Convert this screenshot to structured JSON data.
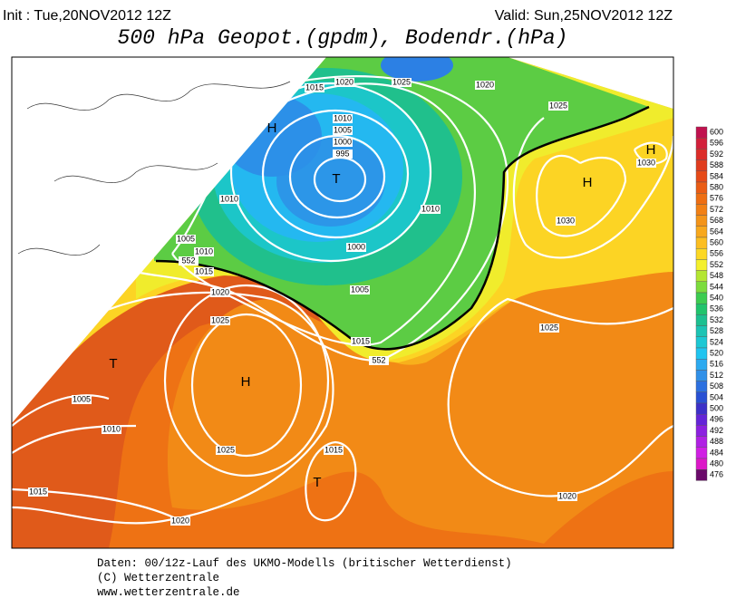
{
  "header": {
    "init": "Init : Tue,20NOV2012 12Z",
    "valid": "Valid: Sun,25NOV2012 12Z",
    "title": "500 hPa Geopot.(gpdm), Bodendr.(hPa)"
  },
  "map": {
    "labels": [
      "1015",
      "1020",
      "1025",
      "1020",
      "1025",
      "1010",
      "1005",
      "1000",
      "995",
      "T",
      "H",
      "H",
      "1030",
      "H",
      "1030",
      "1010",
      "1010",
      "1005",
      "1010",
      "552",
      "1000",
      "1015",
      "1020",
      "1005",
      "1025",
      "1015",
      "552",
      "1025",
      "T",
      "H",
      "1005",
      "1010",
      "1025",
      "1015",
      "T",
      "1015",
      "1020",
      "1020"
    ]
  },
  "colorbar": {
    "levels": [
      600,
      596,
      592,
      588,
      584,
      580,
      576,
      572,
      568,
      564,
      560,
      556,
      552,
      548,
      544,
      540,
      536,
      532,
      528,
      524,
      520,
      516,
      512,
      508,
      504,
      500,
      496,
      492,
      488,
      484,
      480,
      476
    ],
    "colors": [
      "#c0124e",
      "#d2203a",
      "#dc2c28",
      "#e03c1e",
      "#e64a18",
      "#ea5c14",
      "#ee6e12",
      "#f28014",
      "#f49418",
      "#f8a81c",
      "#fcbe20",
      "#fcd824",
      "#f4f02c",
      "#b4e632",
      "#7cdc3c",
      "#3ccc50",
      "#20c46c",
      "#1cc090",
      "#1cc4b4",
      "#1cc8d4",
      "#20c4f0",
      "#2caaf0",
      "#3090e8",
      "#2c70e0",
      "#2850d4",
      "#3c30c8",
      "#6424d8",
      "#8c20e0",
      "#b020e4",
      "#d020e4",
      "#dc18c8",
      "#6a0a6a"
    ]
  },
  "footer": {
    "lines": [
      "Daten: 00/12z-Lauf des UKMO-Modells (britischer Wetterdienst)",
      "(C) Wetterzentrale",
      "www.wetterzentrale.de"
    ]
  }
}
